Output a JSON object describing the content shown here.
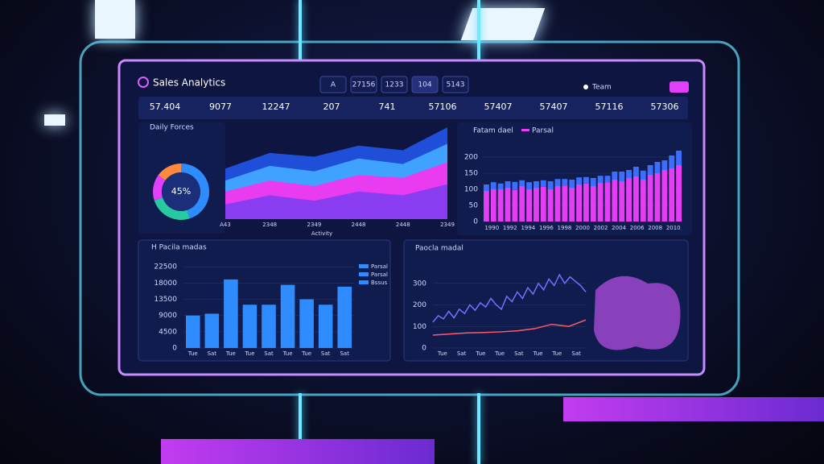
{
  "header": {
    "title": "Sales Analytics",
    "tabs": [
      "A",
      "27156",
      "1233",
      "104",
      "5143"
    ],
    "user": "Team"
  },
  "kpis": [
    "57.404",
    "9077",
    "12247",
    "207",
    "741",
    "57106",
    "57407",
    "57407",
    "57116",
    "57306"
  ],
  "panels": [
    {
      "type": "pie",
      "title": "Daily Forces",
      "center_label": "45%",
      "values": [
        45,
        25,
        15,
        15
      ],
      "colors": [
        "#2f8cff",
        "#27c9a0",
        "#e040fb",
        "#ff8a3d"
      ]
    },
    {
      "type": "area",
      "categories": [
        "A43",
        "2348",
        "2349",
        "2448",
        "2448",
        "2349"
      ],
      "xlabel": "Activity",
      "ylim": [
        0,
        100
      ],
      "series": [
        {
          "color": "#1f4fd8",
          "values": [
            55,
            72,
            68,
            80,
            75,
            100
          ]
        },
        {
          "color": "#3fa2ff",
          "values": [
            42,
            58,
            52,
            66,
            60,
            82
          ]
        },
        {
          "color": "#e93cf0",
          "values": [
            30,
            42,
            36,
            48,
            45,
            62
          ]
        },
        {
          "color": "#8a3cf0",
          "values": [
            16,
            26,
            20,
            30,
            26,
            38
          ]
        }
      ]
    },
    {
      "type": "stacked_bar",
      "title": "Fatam dael",
      "legend": "Parsal",
      "ylim": [
        0,
        250
      ],
      "yticks": [
        0,
        50,
        100,
        150,
        200
      ],
      "xlabels": [
        "1990",
        "1992",
        "1994",
        "1996",
        "1998",
        "2000",
        "2002",
        "2004",
        "2006",
        "2008",
        "2010"
      ],
      "series": [
        {
          "color": "#e63df2",
          "values": [
            95,
            100,
            100,
            105,
            98,
            110,
            100,
            105,
            108,
            100,
            110,
            112,
            105,
            115,
            118,
            110,
            120,
            122,
            130,
            125,
            135,
            140,
            130,
            145,
            150,
            160,
            165,
            175
          ]
        },
        {
          "color": "#3b6dff",
          "values": [
            20,
            22,
            18,
            20,
            25,
            18,
            22,
            20,
            20,
            25,
            22,
            20,
            25,
            22,
            20,
            25,
            22,
            20,
            25,
            30,
            25,
            30,
            28,
            30,
            35,
            30,
            40,
            45
          ]
        }
      ]
    },
    {
      "type": "bar",
      "title": "H Pacila madas",
      "ylim": [
        0,
        25000
      ],
      "yticks": [
        0,
        4500,
        9000,
        13500,
        18000,
        22500
      ],
      "categories": [
        "Tue",
        "Sat",
        "Tue",
        "Tue",
        "Sat",
        "Tue",
        "Tue",
        "Sat",
        "Sat"
      ],
      "values": [
        9000,
        9500,
        19000,
        12000,
        12000,
        17500,
        13500,
        12000,
        17000
      ],
      "color": "#2f8cff",
      "legend": [
        "Parsal",
        "Parsal",
        "Bssus"
      ]
    },
    {
      "type": "line",
      "title": "Paocla madal",
      "ylim": [
        0,
        400
      ],
      "yticks": [
        0,
        100,
        200,
        300
      ],
      "xlabels": [
        "Tue",
        "Sat",
        "Tue",
        "Tue",
        "Sat",
        "Tue",
        "Tue",
        "Sat"
      ],
      "series": [
        {
          "color": "#7a6cff",
          "values": [
            120,
            150,
            135,
            170,
            140,
            180,
            160,
            200,
            175,
            210,
            190,
            230,
            200,
            180,
            240,
            215,
            260,
            230,
            280,
            250,
            300,
            270,
            320,
            290,
            340,
            300,
            330,
            310,
            290,
            260
          ]
        },
        {
          "color": "#ff5a6a",
          "values": [
            60,
            65,
            70,
            72,
            75,
            80,
            90,
            110,
            100,
            130
          ]
        }
      ]
    }
  ]
}
